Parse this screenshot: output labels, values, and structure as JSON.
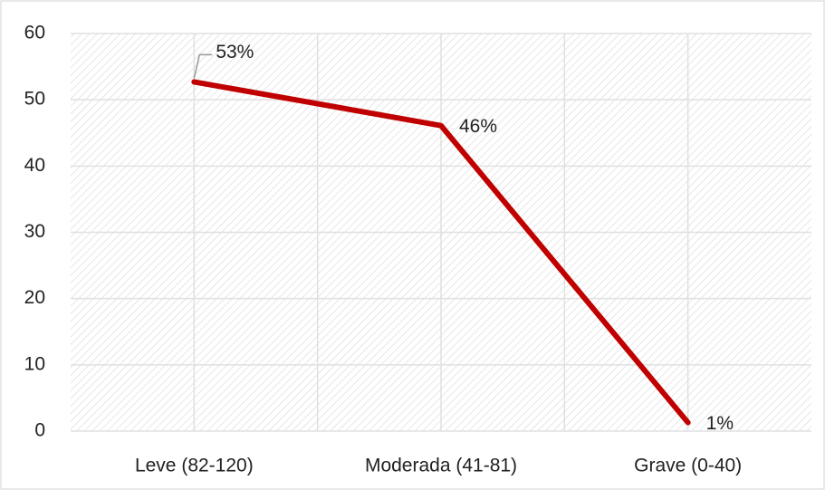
{
  "chart_data": {
    "type": "line",
    "categories": [
      "Leve (82-120)",
      "Moderada (41-81)",
      "Grave (0-40)"
    ],
    "values": [
      52.7,
      46.1,
      1.3
    ],
    "value_labels": [
      "53%",
      "46%",
      "1%"
    ],
    "color": "#c00000",
    "ylim": [
      0,
      60
    ],
    "yticks": [
      0,
      10,
      20,
      30,
      40,
      50,
      60
    ],
    "grid": true
  }
}
